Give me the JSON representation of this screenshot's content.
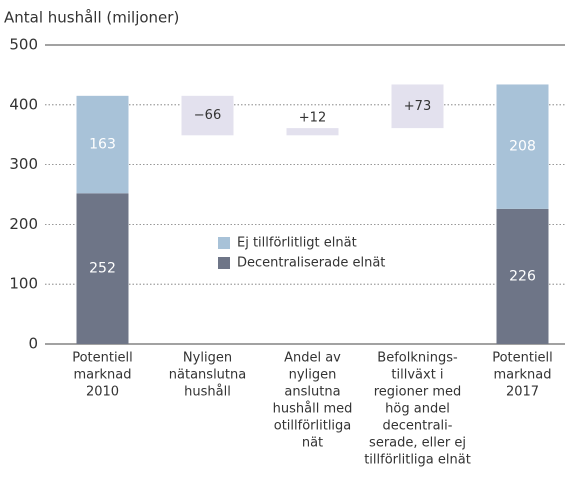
{
  "chart_data": {
    "type": "waterfall",
    "title": "Antal hushåll (miljoner)",
    "categories": [
      [
        "Potentiell",
        "marknad",
        "2010"
      ],
      [
        "Nyligen",
        "nätanslutna",
        "hushåll"
      ],
      [
        "Andel av",
        "nyligen",
        "anslutna",
        "hushåll med",
        "otillförlitliga",
        "nät"
      ],
      [
        "Befolknings-",
        "tillväxt i",
        "regioner med",
        "hög andel",
        "decentrali-",
        "serade, eller ej",
        "tillförlitliga elnät"
      ],
      [
        "Potentiell",
        "marknad",
        "2017"
      ]
    ],
    "series": [
      {
        "name": "Decentraliserade elnät",
        "color": "#6e7587",
        "values": [
          252,
          null,
          null,
          null,
          226
        ]
      },
      {
        "name": "Ej tillförlitligt elnät",
        "color": "#a8c2d8",
        "values": [
          163,
          null,
          null,
          null,
          208
        ]
      }
    ],
    "changes": {
      "color": "#e3e1ee",
      "values": [
        null,
        -66,
        12,
        73,
        null
      ],
      "value_labels": [
        null,
        "−66",
        "+12",
        "+73",
        null
      ]
    },
    "ylim": [
      0,
      500
    ],
    "yticks": [
      0,
      100,
      200,
      300,
      400,
      500
    ],
    "grid": true
  }
}
